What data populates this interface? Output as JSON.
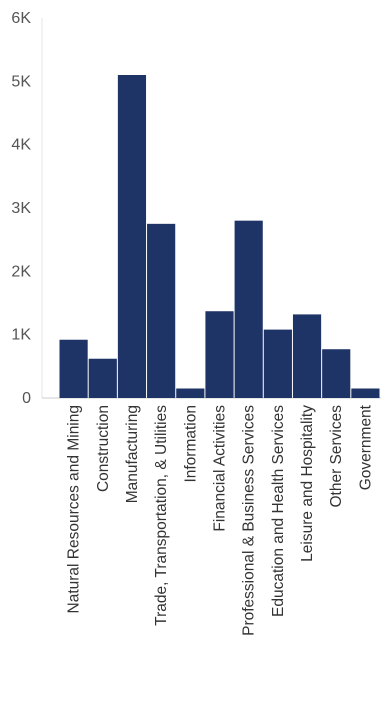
{
  "chart_data": {
    "type": "bar",
    "categories": [
      "Natural Resources and Mining",
      "Construction",
      "Manufacturing",
      "Trade, Transportation, & Utilities",
      "Information",
      "Financial Activities",
      "Professional & Business Services",
      "Education and Health Services",
      "Leisure and Hospitality",
      "Other Services",
      "Government"
    ],
    "values": [
      920,
      620,
      5100,
      2750,
      150,
      1370,
      2800,
      1080,
      1320,
      770,
      150
    ],
    "yticks": [
      0,
      1000,
      2000,
      3000,
      4000,
      5000,
      6000
    ],
    "ytick_labels": [
      "0",
      "1K",
      "2K",
      "3K",
      "4K",
      "5K",
      "6K"
    ],
    "ylim": [
      0,
      6000
    ],
    "title": "",
    "xlabel": "",
    "ylabel": "",
    "grid": false,
    "legend": "none",
    "bar_color": "#1f3466"
  }
}
